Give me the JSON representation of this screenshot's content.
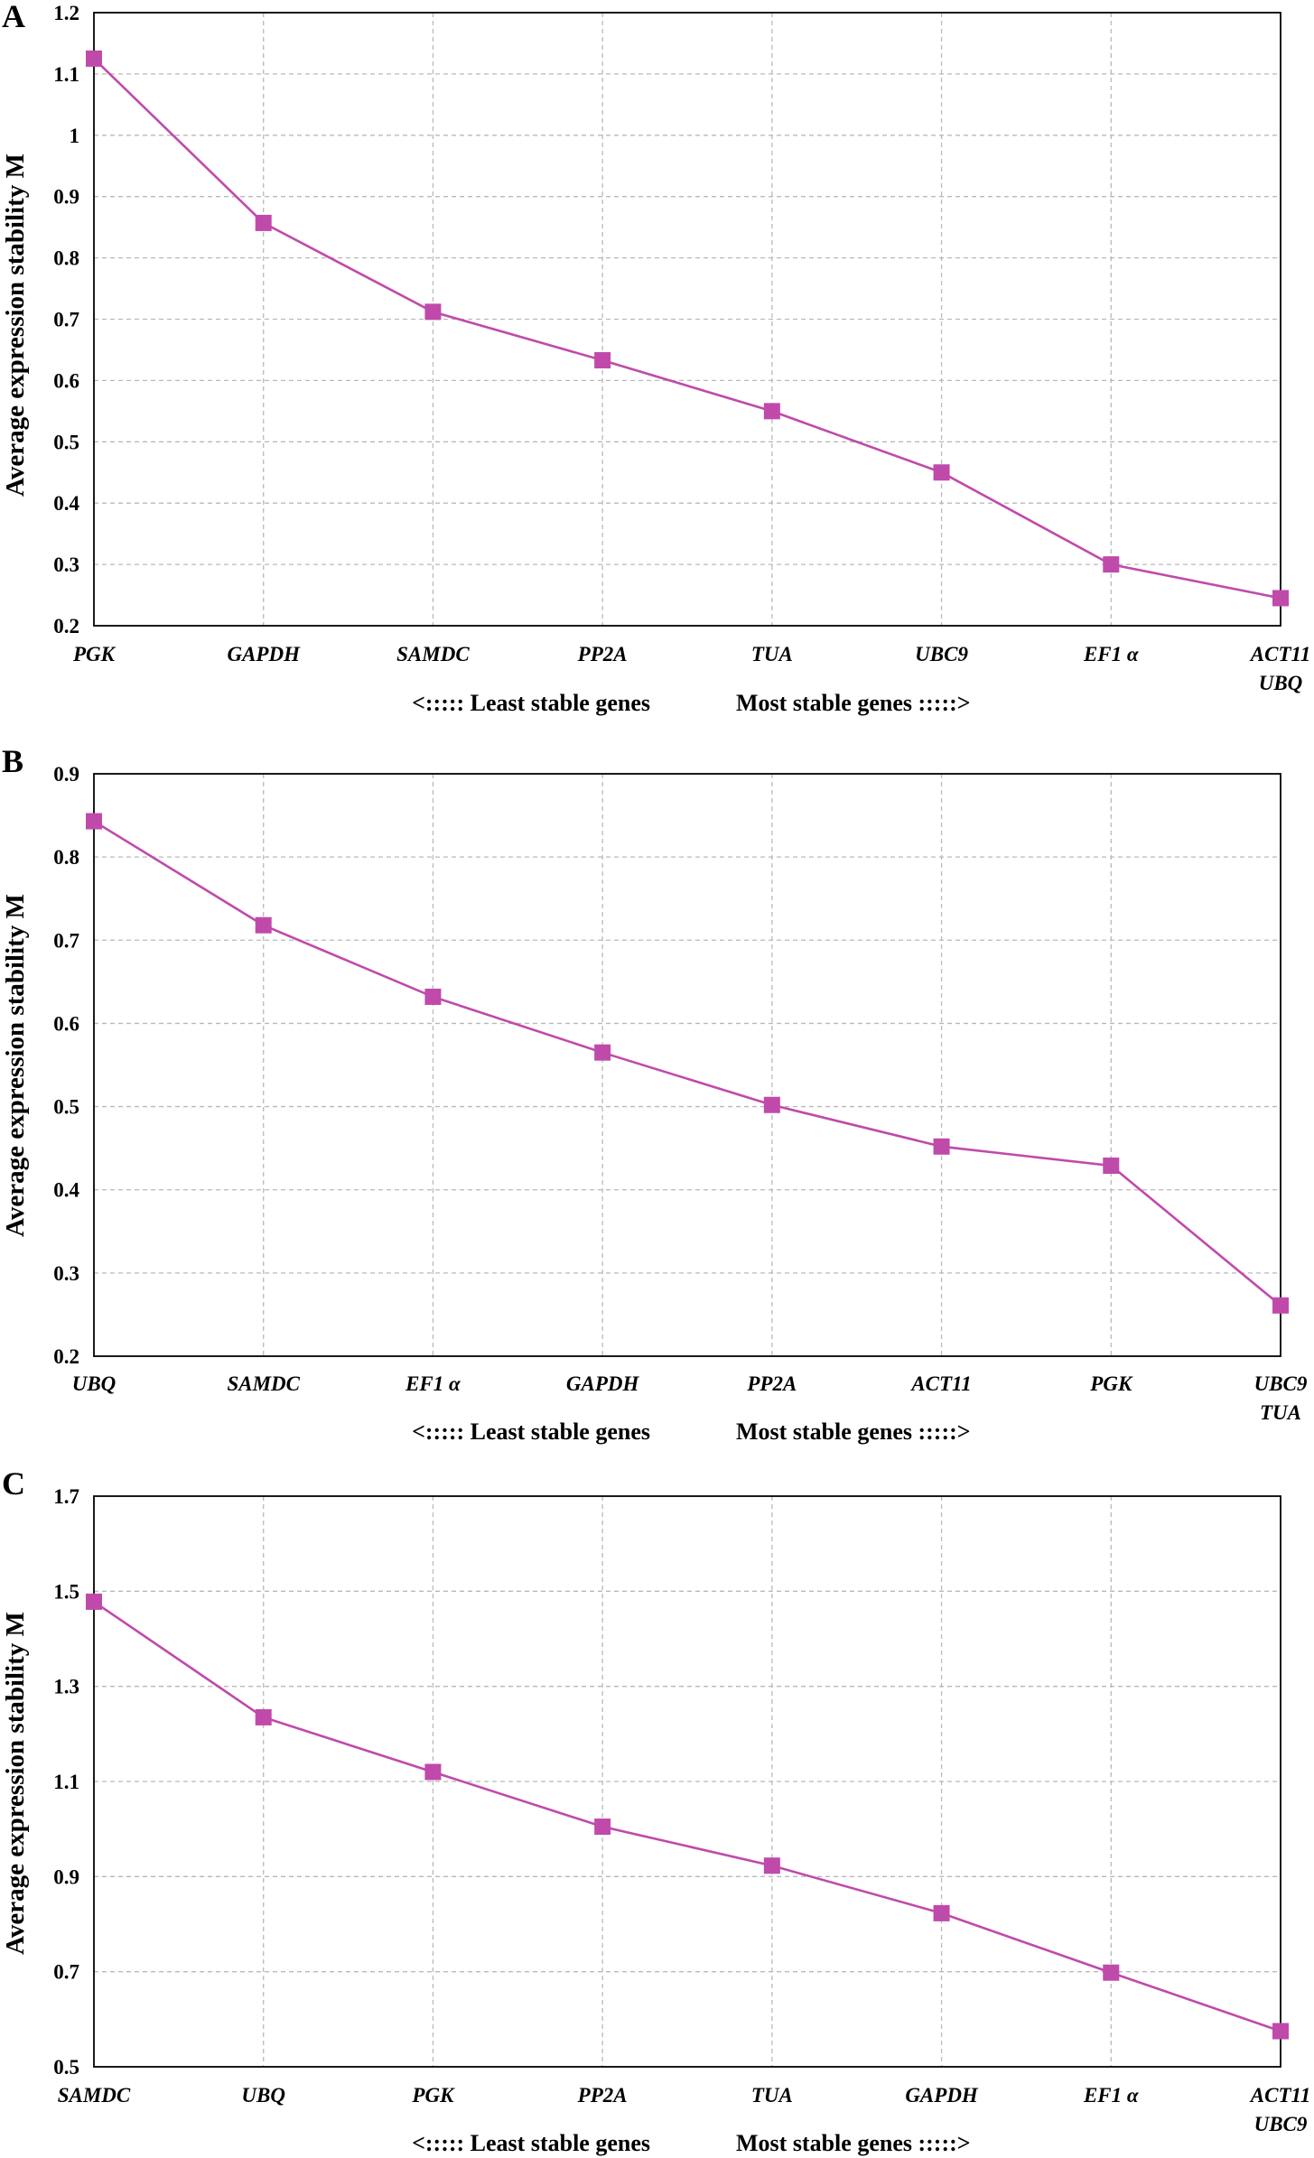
{
  "figure": {
    "series_color": "#c04aaa"
  },
  "chart_data": [
    {
      "type": "line",
      "panel": "A",
      "ylabel": "Average expression stability M",
      "ylim": [
        0.2,
        1.2
      ],
      "yticks": [
        "0.2",
        "0.3",
        "0.4",
        "0.5",
        "0.6",
        "0.7",
        "0.8",
        "0.9",
        "1",
        "1.1",
        "1.2"
      ],
      "categories": [
        [
          "PGK"
        ],
        [
          "GAPDH"
        ],
        [
          "SAMDC"
        ],
        [
          "PP2A"
        ],
        [
          "TUA"
        ],
        [
          "UBC9"
        ],
        [
          "EF1 α"
        ],
        [
          "ACT11",
          "UBQ"
        ]
      ],
      "values": [
        1.125,
        0.857,
        0.712,
        0.633,
        0.55,
        0.45,
        0.3,
        0.245
      ],
      "least_stable_label": "<::::: Least stable genes",
      "most_stable_label": "Most stable genes :::::>"
    },
    {
      "type": "line",
      "panel": "B",
      "ylabel": "Average expression stability M",
      "ylim": [
        0.2,
        0.9
      ],
      "yticks": [
        "0.2",
        "0.3",
        "0.4",
        "0.5",
        "0.6",
        "0.7",
        "0.8",
        "0.9"
      ],
      "categories": [
        [
          "UBQ"
        ],
        [
          "SAMDC"
        ],
        [
          "EF1 α"
        ],
        [
          "GAPDH"
        ],
        [
          "PP2A"
        ],
        [
          "ACT11"
        ],
        [
          "PGK"
        ],
        [
          "UBC9",
          "TUA"
        ]
      ],
      "values": [
        0.843,
        0.718,
        0.632,
        0.565,
        0.502,
        0.452,
        0.429,
        0.261
      ],
      "least_stable_label": "<::::: Least stable genes",
      "most_stable_label": "Most stable genes :::::>"
    },
    {
      "type": "line",
      "panel": "C",
      "ylabel": "Average expression stability M",
      "ylim": [
        0.5,
        1.7
      ],
      "yticks": [
        "0.5",
        "0.7",
        "0.9",
        "1.1",
        "1.3",
        "1.5",
        "1.7"
      ],
      "categories": [
        [
          "SAMDC"
        ],
        [
          "UBQ"
        ],
        [
          "PGK"
        ],
        [
          "PP2A"
        ],
        [
          "TUA"
        ],
        [
          "GAPDH"
        ],
        [
          "EF1 α"
        ],
        [
          "ACT11",
          "UBC9"
        ]
      ],
      "values": [
        1.478,
        1.235,
        1.12,
        1.005,
        0.923,
        0.823,
        0.698,
        0.575
      ],
      "least_stable_label": "<::::: Least stable genes",
      "most_stable_label": "Most stable genes :::::>"
    }
  ]
}
